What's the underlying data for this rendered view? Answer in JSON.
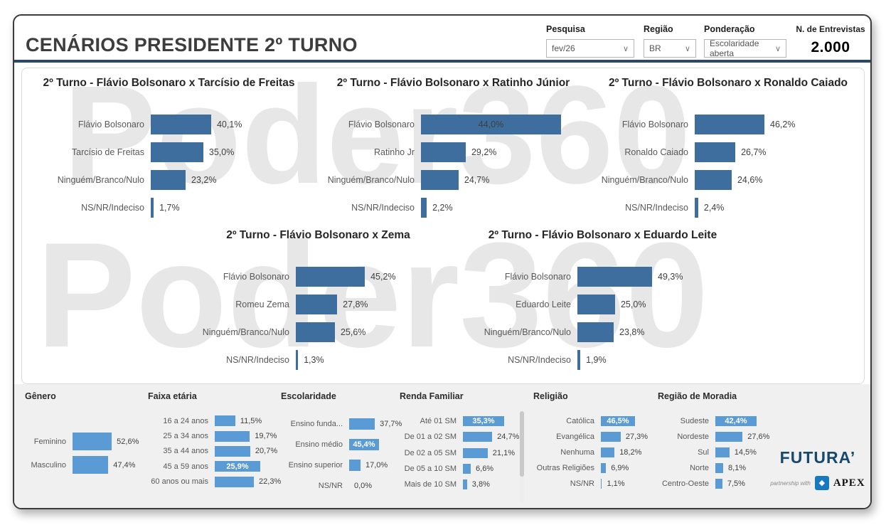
{
  "header": {
    "title": "CENÁRIOS PRESIDENTE 2º TURNO",
    "filters": [
      {
        "label": "Pesquisa",
        "value": "fev/26"
      },
      {
        "label": "Região",
        "value": "BR"
      },
      {
        "label": "Ponderação",
        "value": "Escolaridade aberta"
      }
    ],
    "interviews": {
      "label": "N. de Entrevistas",
      "value": "2.000"
    }
  },
  "watermark": {
    "row1": "Poder360",
    "row2": "Poder360"
  },
  "colors": {
    "scenario_bar": "#3d6e9e",
    "demo_bar": "#5b9bd5",
    "header_line": "#2c4963",
    "watermark": "#e7e7e7",
    "band_bg": "#f0f0f0"
  },
  "logo": {
    "brand": "FUTURA’",
    "partnership": "partnership with",
    "partner": "APEX",
    "partner_icon": "diamond-icon"
  },
  "chart_data": [
    {
      "id": "s1",
      "group": "scenario",
      "type": "bar",
      "orientation": "horizontal",
      "title": "2º Turno - Flávio Bolsonaro x Tarcísio de Freitas",
      "value_unit": "%",
      "rows": [
        {
          "label": "Flávio Bolsonaro",
          "value": 40.1,
          "display": "40,1%",
          "pct": 37.6,
          "inside": false
        },
        {
          "label": "Tarcísio de Freitas",
          "value": 35.0,
          "display": "35,0%",
          "pct": 32.7,
          "inside": false
        },
        {
          "label": "Ninguém/Branco/Nulo",
          "value": 23.2,
          "display": "23,2%",
          "pct": 21.7,
          "inside": false
        },
        {
          "label": "NS/NR/Indeciso",
          "value": 1.7,
          "display": "1,7%",
          "pct": 1.8,
          "inside": false
        }
      ]
    },
    {
      "id": "s2",
      "group": "scenario",
      "type": "bar",
      "orientation": "horizontal",
      "title": "2º Turno - Flávio Bolsonaro x Ratinho Júnior",
      "value_unit": "%",
      "rows": [
        {
          "label": "Flávio Bolsonaro",
          "value": 44.0,
          "display": "44,0%",
          "pct": 80.4,
          "inside": true
        },
        {
          "label": "Ratinho Jr",
          "value": 29.2,
          "display": "29,2%",
          "pct": 25.7,
          "inside": false
        },
        {
          "label": "Ninguém/Branco/Nulo",
          "value": 24.7,
          "display": "24,7%",
          "pct": 21.6,
          "inside": false
        },
        {
          "label": "NS/NR/Indeciso",
          "value": 2.2,
          "display": "2,2%",
          "pct": 3.3,
          "inside": false
        }
      ]
    },
    {
      "id": "s3",
      "group": "scenario",
      "type": "bar",
      "orientation": "horizontal",
      "title": "2º Turno - Flávio Bolsonaro x Ronaldo Caiado",
      "value_unit": "%",
      "rows": [
        {
          "label": "Flávio Bolsonaro",
          "value": 46.2,
          "display": "46,2%",
          "pct": 40.0,
          "inside": false
        },
        {
          "label": "Ronaldo Caiado",
          "value": 26.7,
          "display": "26,7%",
          "pct": 23.3,
          "inside": false
        },
        {
          "label": "Ninguém/Branco/Nulo",
          "value": 24.6,
          "display": "24,6%",
          "pct": 21.2,
          "inside": false
        },
        {
          "label": "NS/NR/Indeciso",
          "value": 2.4,
          "display": "2,4%",
          "pct": 2.0,
          "inside": false
        }
      ]
    },
    {
      "id": "s4",
      "group": "scenario",
      "type": "bar",
      "orientation": "horizontal",
      "title": "2º Turno - Flávio Bolsonaro x Zema",
      "value_unit": "%",
      "rows": [
        {
          "label": "Flávio Bolsonaro",
          "value": 45.2,
          "display": "45,2%",
          "pct": 40.8,
          "inside": false
        },
        {
          "label": "Romeu Zema",
          "value": 27.8,
          "display": "27,8%",
          "pct": 24.4,
          "inside": false
        },
        {
          "label": "Ninguém/Branco/Nulo",
          "value": 25.6,
          "display": "25,6%",
          "pct": 23.1,
          "inside": false
        },
        {
          "label": "NS/NR/Indeciso",
          "value": 1.3,
          "display": "1,3%",
          "pct": 1.3,
          "inside": false
        }
      ]
    },
    {
      "id": "s5",
      "group": "scenario",
      "type": "bar",
      "orientation": "horizontal",
      "title": "2º Turno - Flávio Bolsonaro x Eduardo Leite",
      "value_unit": "%",
      "rows": [
        {
          "label": "Flávio Bolsonaro",
          "value": 49.3,
          "display": "49,3%",
          "pct": 43.4,
          "inside": false
        },
        {
          "label": "Eduardo Leite",
          "value": 25.0,
          "display": "25,0%",
          "pct": 21.9,
          "inside": false
        },
        {
          "label": "Ninguém/Branco/Nulo",
          "value": 23.8,
          "display": "23,8%",
          "pct": 21.1,
          "inside": false
        },
        {
          "label": "NS/NR/Indeciso",
          "value": 1.9,
          "display": "1,9%",
          "pct": 1.7,
          "inside": false
        }
      ]
    },
    {
      "id": "genero",
      "group": "demographic",
      "type": "bar",
      "orientation": "horizontal",
      "title": "Gênero",
      "value_unit": "%",
      "rows": [
        {
          "label": "Feminino",
          "value": 52.6,
          "display": "52,6%",
          "pct": 89,
          "inside": false
        },
        {
          "label": "Masculino",
          "value": 47.4,
          "display": "47,4%",
          "pct": 81,
          "inside": false
        }
      ]
    },
    {
      "id": "faixa",
      "group": "demographic",
      "type": "bar",
      "orientation": "horizontal",
      "title": "Faixa etária",
      "value_unit": "%",
      "rows": [
        {
          "label": "16 a 24 anos",
          "value": 11.5,
          "display": "11,5%",
          "pct": 45,
          "inside": false
        },
        {
          "label": "25 a 34 anos",
          "value": 19.7,
          "display": "19,7%",
          "pct": 77,
          "inside": false
        },
        {
          "label": "35 a 44 anos",
          "value": 20.7,
          "display": "20,7%",
          "pct": 78,
          "inside": false
        },
        {
          "label": "45 a 59 anos",
          "value": 25.9,
          "display": "25,9%",
          "pct": 100,
          "inside": true
        },
        {
          "label": "60 anos ou mais",
          "value": 22.3,
          "display": "22,3%",
          "pct": 86,
          "inside": false
        }
      ]
    },
    {
      "id": "escolaridade",
      "group": "demographic",
      "type": "bar",
      "orientation": "horizontal",
      "title": "Escolaridade",
      "value_unit": "%",
      "rows": [
        {
          "label": "Ensino funda...",
          "value": 37.7,
          "display": "37,7%",
          "pct": 86,
          "inside": false
        },
        {
          "label": "Ensino médio",
          "value": 45.4,
          "display": "45,4%",
          "pct": 100,
          "inside": true
        },
        {
          "label": "Ensino superior",
          "value": 17.0,
          "display": "17,0%",
          "pct": 38,
          "inside": false
        },
        {
          "label": "NS/NR",
          "value": 0.0,
          "display": "0,0%",
          "pct": 0,
          "inside": false
        }
      ]
    },
    {
      "id": "renda",
      "group": "demographic",
      "type": "bar",
      "orientation": "horizontal",
      "title": "Renda Familiar",
      "value_unit": "%",
      "rows": [
        {
          "label": "Até 01 SM",
          "value": 35.3,
          "display": "35,3%",
          "pct": 100,
          "inside": true
        },
        {
          "label": "De 01 a 02 SM",
          "value": 24.7,
          "display": "24,7%",
          "pct": 71,
          "inside": false
        },
        {
          "label": "De 02 a 05 SM",
          "value": 21.1,
          "display": "21,1%",
          "pct": 60,
          "inside": false
        },
        {
          "label": "De 05 a 10 SM",
          "value": 6.6,
          "display": "6,6%",
          "pct": 19,
          "inside": false
        },
        {
          "label": "Mais de 10 SM",
          "value": 3.8,
          "display": "3,8%",
          "pct": 10,
          "inside": false
        }
      ]
    },
    {
      "id": "religiao",
      "group": "demographic",
      "type": "bar",
      "orientation": "horizontal",
      "title": "Religião",
      "value_unit": "%",
      "rows": [
        {
          "label": "Católica",
          "value": 46.5,
          "display": "46,5%",
          "pct": 100,
          "inside": true
        },
        {
          "label": "Evangélica",
          "value": 27.3,
          "display": "27,3%",
          "pct": 58,
          "inside": false
        },
        {
          "label": "Nenhuma",
          "value": 18.2,
          "display": "18,2%",
          "pct": 40,
          "inside": false
        },
        {
          "label": "Outras Religiões",
          "value": 6.9,
          "display": "6,9%",
          "pct": 15,
          "inside": false
        },
        {
          "label": "NS/NR",
          "value": 1.1,
          "display": "1,1%",
          "pct": 3,
          "inside": false
        }
      ]
    },
    {
      "id": "regiao",
      "group": "demographic",
      "type": "bar",
      "orientation": "horizontal",
      "title": "Região de Moradia",
      "value_unit": "%",
      "rows": [
        {
          "label": "Sudeste",
          "value": 42.4,
          "display": "42,4%",
          "pct": 100,
          "inside": true
        },
        {
          "label": "Nordeste",
          "value": 27.6,
          "display": "27,6%",
          "pct": 66,
          "inside": false
        },
        {
          "label": "Sul",
          "value": 14.5,
          "display": "14,5%",
          "pct": 34,
          "inside": false
        },
        {
          "label": "Norte",
          "value": 8.1,
          "display": "8,1%",
          "pct": 19,
          "inside": false
        },
        {
          "label": "Centro-Oeste",
          "value": 7.5,
          "display": "7,5%",
          "pct": 17,
          "inside": false
        }
      ]
    }
  ]
}
